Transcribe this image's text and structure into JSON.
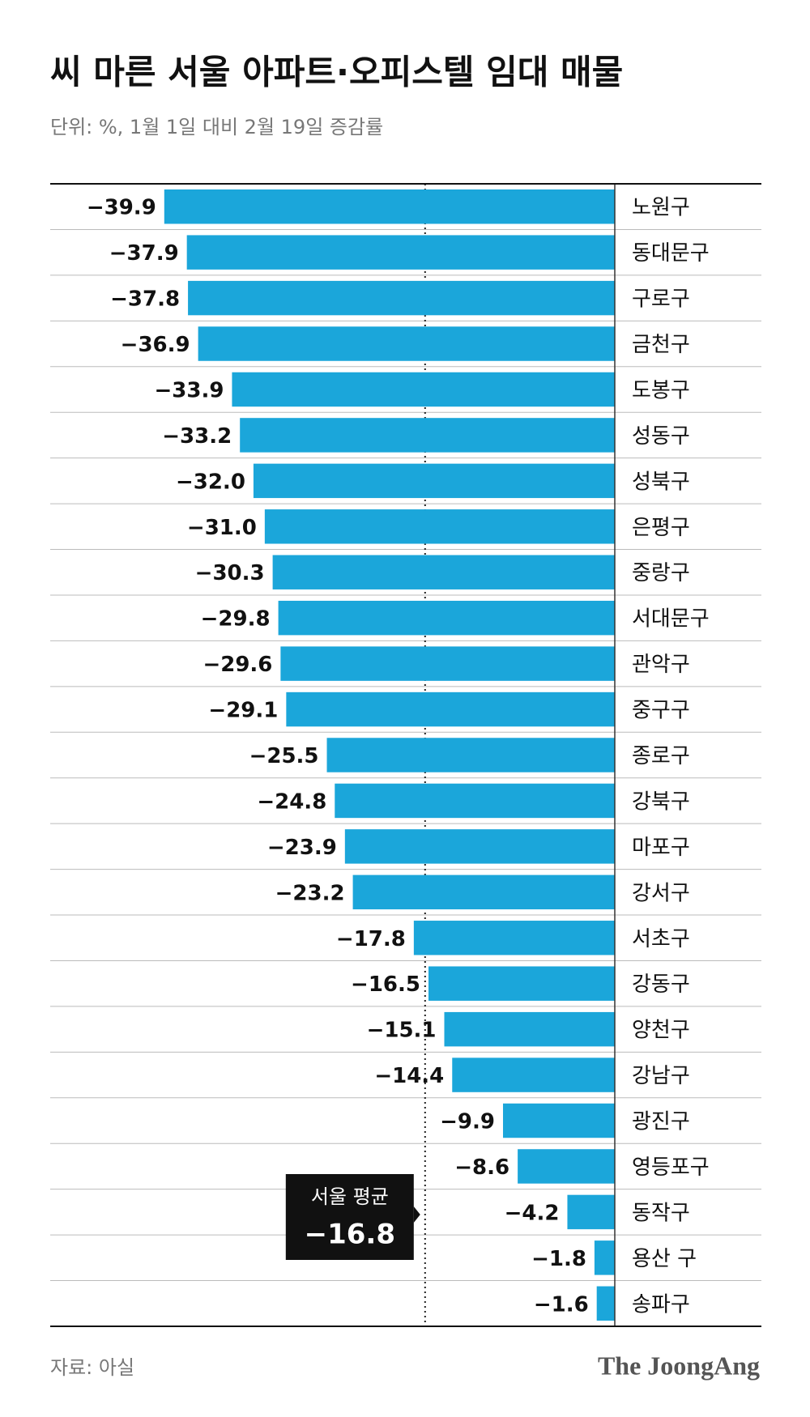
{
  "chart_data": {
    "type": "bar",
    "orientation": "horizontal",
    "title": "씨 마른 서울 아파트·오피스텔 임대 매물",
    "subtitle": "단위: %, 1월 1일 대비 2월 19일 증감률",
    "categories": [
      "노원구",
      "동대문구",
      "구로구",
      "금천구",
      "도봉구",
      "성동구",
      "성북구",
      "은평구",
      "중랑구",
      "서대문구",
      "관악구",
      "중구구",
      "종로구",
      "강북구",
      "마포구",
      "강서구",
      "서초구",
      "강동구",
      "양천구",
      "강남구",
      "광진구",
      "영등포구",
      "동작구",
      "용산 구",
      "송파구"
    ],
    "values": [
      -39.9,
      -37.9,
      -37.8,
      -36.9,
      -33.9,
      -33.2,
      -32.0,
      -31.0,
      -30.3,
      -29.8,
      -29.6,
      -29.1,
      -25.5,
      -24.8,
      -23.9,
      -23.2,
      -17.8,
      -16.5,
      -15.1,
      -14.4,
      -9.9,
      -8.6,
      -4.2,
      -1.8,
      -1.6
    ],
    "value_labels": [
      "−39.9",
      "−37.9",
      "−37.8",
      "−36.9",
      "−33.9",
      "−33.2",
      "−32.0",
      "−31.0",
      "−30.3",
      "−29.8",
      "−29.6",
      "−29.1",
      "−25.5",
      "−24.8",
      "−23.9",
      "−23.2",
      "−17.8",
      "−16.5",
      "−15.1",
      "−14.4",
      "−9.9",
      "−8.6",
      "−4.2",
      "−1.8",
      "−1.6"
    ],
    "color": "#1ba6da",
    "xlim": [
      -50,
      0
    ],
    "reference_line": {
      "label": "서울 평균",
      "value": -16.8,
      "value_label": "−16.8"
    },
    "source": "자료: 아실",
    "brand": "The JoongAng"
  }
}
